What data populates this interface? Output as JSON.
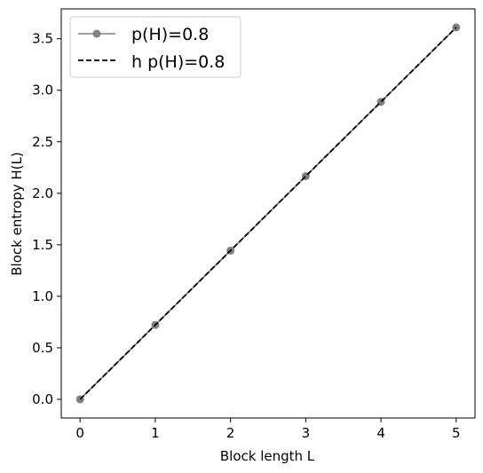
{
  "chart_data": {
    "type": "line",
    "title": "",
    "xlabel": "Block length L",
    "ylabel": "Block entropy H(L)",
    "xlim": [
      -0.25,
      5.25
    ],
    "ylim": [
      -0.181,
      3.79
    ],
    "xticks": [
      0,
      1,
      2,
      3,
      4,
      5
    ],
    "yticks": [
      0.0,
      0.5,
      1.0,
      1.5,
      2.0,
      2.5,
      3.0,
      3.5
    ],
    "xtick_labels": [
      "0",
      "1",
      "2",
      "3",
      "4",
      "5"
    ],
    "ytick_labels": [
      "0.0",
      "0.5",
      "1.0",
      "1.5",
      "2.0",
      "2.5",
      "3.0",
      "3.5"
    ],
    "grid": false,
    "legend_position": "top-left",
    "series": [
      {
        "name": "p(H)=0.8",
        "style": "solid-marker",
        "color": "#808080",
        "x": [
          0,
          1,
          2,
          3,
          4,
          5
        ],
        "y": [
          0.0,
          0.722,
          1.444,
          2.166,
          2.888,
          3.61
        ]
      },
      {
        "name": "h p(H)=0.8",
        "style": "dashed",
        "color": "#000000",
        "x": [
          0,
          5
        ],
        "y": [
          0.0,
          3.61
        ]
      }
    ]
  }
}
